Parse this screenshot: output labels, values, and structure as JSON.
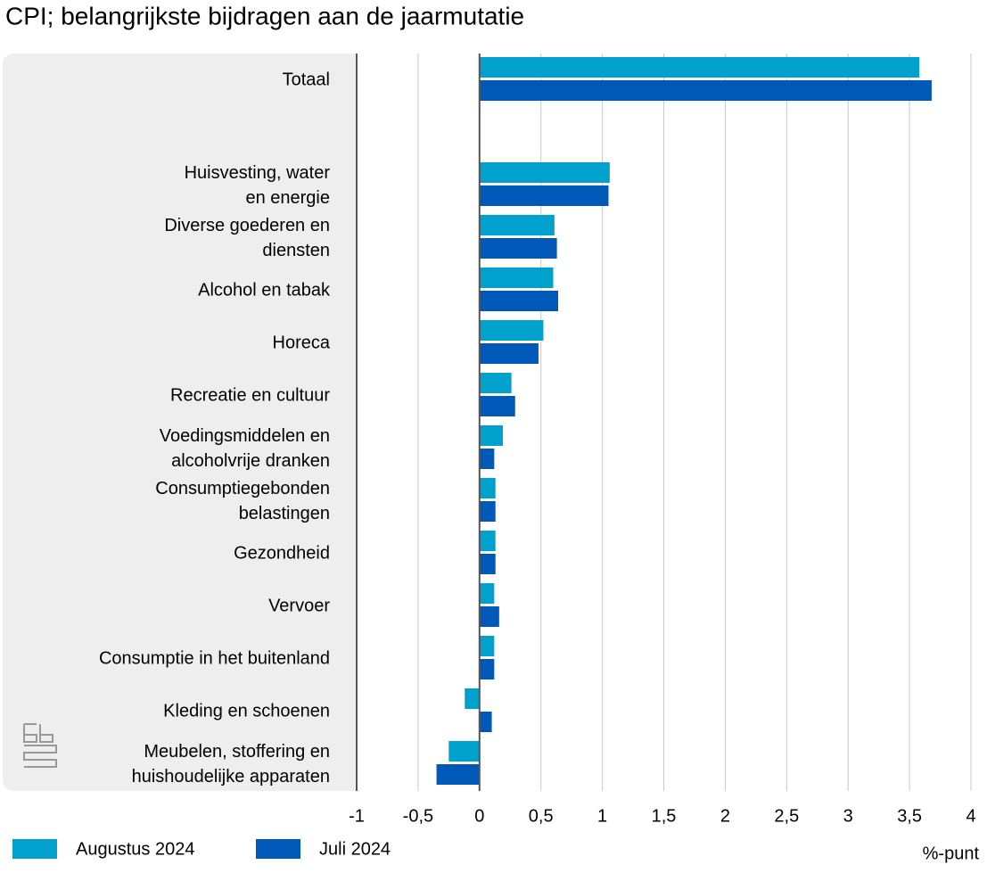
{
  "chart_data": {
    "type": "hbar",
    "title": "CPI; belangrijkste bijdragen aan de jaarmutatie",
    "xlabel": "%-punt",
    "categories": [
      "Totaal",
      null,
      "Huisvesting, water\nen energie",
      "Diverse goederen en\ndiensten",
      "Alcohol en tabak",
      "Horeca",
      "Recreatie en cultuur",
      "Voedingsmiddelen en\nalcoholvrije dranken",
      "Consumptiegebonden\nbelastingen",
      "Gezondheid",
      "Vervoer",
      "Consumptie in het buitenland",
      "Kleding en schoenen",
      "Meubelen, stoffering en\nhuishoudelijke apparaten"
    ],
    "series": [
      {
        "name": "Augustus 2024",
        "color": "#00a1cd",
        "values": [
          3.58,
          null,
          1.06,
          0.61,
          0.6,
          0.52,
          0.26,
          0.19,
          0.13,
          0.13,
          0.12,
          0.12,
          -0.12,
          -0.25
        ]
      },
      {
        "name": "Juli 2024",
        "color": "#0058b8",
        "values": [
          3.68,
          null,
          1.05,
          0.63,
          0.64,
          0.48,
          0.29,
          0.12,
          0.13,
          0.13,
          0.16,
          0.12,
          0.1,
          -0.35
        ]
      }
    ],
    "xlim": [
      -1,
      4
    ],
    "xticks": [
      -1,
      {
        "value": -0.5,
        "label": "-0,5"
      },
      0,
      {
        "value": 0.5,
        "label": "0,5"
      },
      1,
      {
        "value": 1.5,
        "label": "1,5"
      },
      2,
      {
        "value": 2.5,
        "label": "2,5"
      },
      3,
      {
        "value": 3.5,
        "label": "3,5"
      },
      4
    ],
    "grid": true
  }
}
